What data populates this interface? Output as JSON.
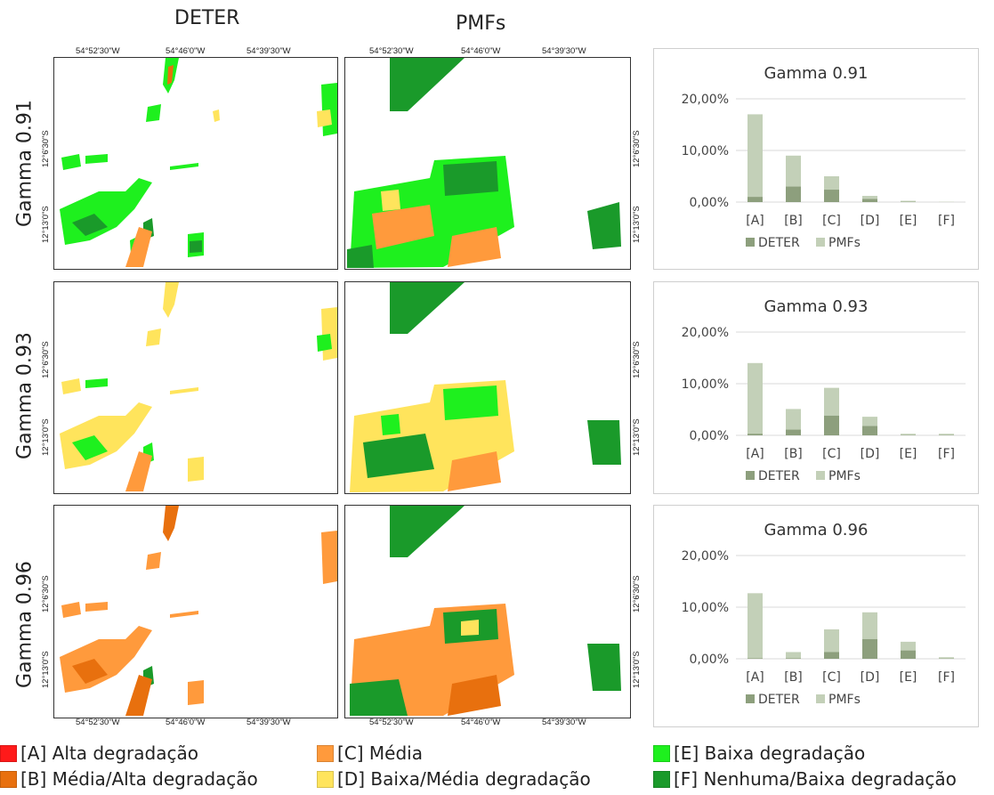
{
  "headers": {
    "deter": "DETER",
    "pmfs": "PMFs"
  },
  "rows": [
    {
      "label": "Gamma 0.91"
    },
    {
      "label": "Gamma 0.93"
    },
    {
      "label": "Gamma 0.96"
    }
  ],
  "coords": {
    "lon": [
      "54°52'30\"W",
      "54°46'0\"W",
      "54°39'30\"W"
    ],
    "lat": [
      "12°6'30\"S",
      "12°13'0\"S"
    ]
  },
  "colors": {
    "A": "#ff1a1a",
    "B": "#e8700e",
    "C": "#ff9a3c",
    "D": "#ffe45c",
    "E": "#1ef01e",
    "F": "#1a9a2a",
    "deter": "#8d9f7d",
    "pmfs": "#c3d0b8"
  },
  "legend": [
    {
      "label": "[A] Alta degradação",
      "color_key": "A"
    },
    {
      "label": "[B] Média/Alta degradação",
      "color_key": "B"
    },
    {
      "label": "[C] Média",
      "color_key": "C"
    },
    {
      "label": "[D] Baixa/Média degradação",
      "color_key": "D"
    },
    {
      "label": "[E] Baixa degradação",
      "color_key": "E"
    },
    {
      "label": "[F] Nenhuma/Baixa degradação",
      "color_key": "F"
    }
  ],
  "chart_data": [
    {
      "type": "bar",
      "title": "Gamma 0.91",
      "categories": [
        "[A]",
        "[B]",
        "[C]",
        "[D]",
        "[E]",
        "[F]"
      ],
      "series": [
        {
          "name": "DETER",
          "values": [
            1.0,
            3.0,
            2.4,
            0.6,
            0.05,
            0.0
          ]
        },
        {
          "name": "PMFs",
          "values": [
            17.0,
            9.0,
            5.0,
            1.2,
            0.25,
            0.05
          ]
        }
      ],
      "yticks": [
        "0,00%",
        "10,00%",
        "20,00%"
      ],
      "ylim": [
        0,
        20
      ],
      "legend_position": "bottom",
      "grid": true
    },
    {
      "type": "bar",
      "title": "Gamma 0.93",
      "categories": [
        "[A]",
        "[B]",
        "[C]",
        "[D]",
        "[E]",
        "[F]"
      ],
      "series": [
        {
          "name": "DETER",
          "values": [
            0.3,
            1.1,
            3.8,
            1.8,
            0.05,
            0.05
          ]
        },
        {
          "name": "PMFs",
          "values": [
            14.0,
            5.1,
            9.2,
            3.6,
            0.3,
            0.3
          ]
        }
      ],
      "yticks": [
        "0,00%",
        "10,00%",
        "20,00%"
      ],
      "ylim": [
        0,
        20
      ],
      "legend_position": "bottom",
      "grid": true
    },
    {
      "type": "bar",
      "title": "Gamma 0.96",
      "categories": [
        "[A]",
        "[B]",
        "[C]",
        "[D]",
        "[E]",
        "[F]"
      ],
      "series": [
        {
          "name": "DETER",
          "values": [
            0.1,
            0.1,
            1.3,
            3.8,
            1.6,
            0.05
          ]
        },
        {
          "name": "PMFs",
          "values": [
            12.7,
            1.3,
            5.7,
            9.0,
            3.3,
            0.3
          ]
        }
      ],
      "yticks": [
        "0,00%",
        "10,00%",
        "20,00%"
      ],
      "ylim": [
        0,
        20
      ],
      "legend_position": "bottom",
      "grid": true
    }
  ]
}
